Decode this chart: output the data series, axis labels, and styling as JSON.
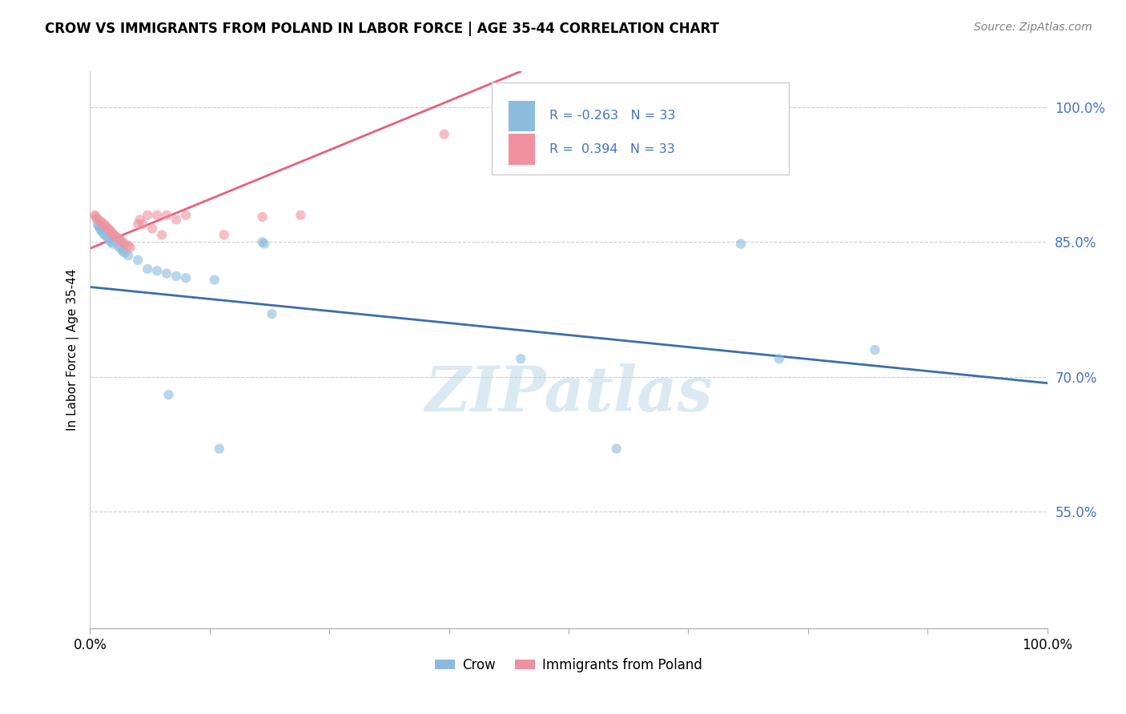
{
  "title": "CROW VS IMMIGRANTS FROM POLAND IN LABOR FORCE | AGE 35-44 CORRELATION CHART",
  "source": "Source: ZipAtlas.com",
  "ylabel": "In Labor Force | Age 35-44",
  "ytick_vals": [
    0.55,
    0.7,
    0.85,
    1.0
  ],
  "ytick_labels": [
    "55.0%",
    "70.0%",
    "85.0%",
    "100.0%"
  ],
  "xtick_vals": [
    0.0,
    0.125,
    0.25,
    0.375,
    0.5,
    0.625,
    0.75,
    0.875,
    1.0
  ],
  "xtick_labels": [
    "0.0%",
    "",
    "",
    "",
    "",
    "",
    "",
    "",
    "100.0%"
  ],
  "legend_crow": "Crow",
  "legend_poland": "Immigrants from Poland",
  "r_crow": "-0.263",
  "n_crow": "33",
  "r_poland": "0.394",
  "n_poland": "33",
  "watermark": "ZIPatlas",
  "crow_color": "#8bbcde",
  "poland_color": "#f0919f",
  "crow_line_color": "#3a6ead",
  "poland_line_color": "#e8607a",
  "crow_x": [
    0.008,
    0.009,
    0.01,
    0.011,
    0.012,
    0.014,
    0.015,
    0.018,
    0.02,
    0.022,
    0.024,
    0.03,
    0.032,
    0.034,
    0.036,
    0.04,
    0.05,
    0.06,
    0.07,
    0.08,
    0.082,
    0.09,
    0.1,
    0.13,
    0.135,
    0.18,
    0.182,
    0.19,
    0.45,
    0.55,
    0.68,
    0.72,
    0.82
  ],
  "crow_y": [
    0.87,
    0.868,
    0.866,
    0.864,
    0.862,
    0.86,
    0.858,
    0.855,
    0.852,
    0.85,
    0.848,
    0.845,
    0.843,
    0.84,
    0.838,
    0.835,
    0.83,
    0.82,
    0.818,
    0.815,
    0.68,
    0.812,
    0.81,
    0.808,
    0.62,
    0.85,
    0.848,
    0.77,
    0.72,
    0.62,
    0.848,
    0.72,
    0.73
  ],
  "poland_x": [
    0.005,
    0.006,
    0.007,
    0.01,
    0.012,
    0.015,
    0.016,
    0.018,
    0.02,
    0.022,
    0.023,
    0.025,
    0.027,
    0.03,
    0.032,
    0.034,
    0.036,
    0.04,
    0.042,
    0.05,
    0.052,
    0.055,
    0.06,
    0.065,
    0.07,
    0.075,
    0.08,
    0.09,
    0.1,
    0.14,
    0.18,
    0.22,
    0.37
  ],
  "poland_y": [
    0.88,
    0.878,
    0.876,
    0.874,
    0.872,
    0.87,
    0.868,
    0.866,
    0.864,
    0.862,
    0.86,
    0.858,
    0.856,
    0.854,
    0.852,
    0.85,
    0.848,
    0.846,
    0.844,
    0.87,
    0.875,
    0.87,
    0.88,
    0.865,
    0.88,
    0.858,
    0.88,
    0.875,
    0.88,
    0.858,
    0.878,
    0.88,
    0.97
  ],
  "xlim": [
    0.0,
    1.0
  ],
  "ylim": [
    0.42,
    1.04
  ],
  "crow_trendline_x": [
    0.0,
    1.0
  ],
  "crow_trendline_y": [
    0.8,
    0.693
  ],
  "poland_trendline_x": [
    0.0,
    0.45
  ],
  "poland_trendline_y": [
    0.843,
    1.04
  ]
}
